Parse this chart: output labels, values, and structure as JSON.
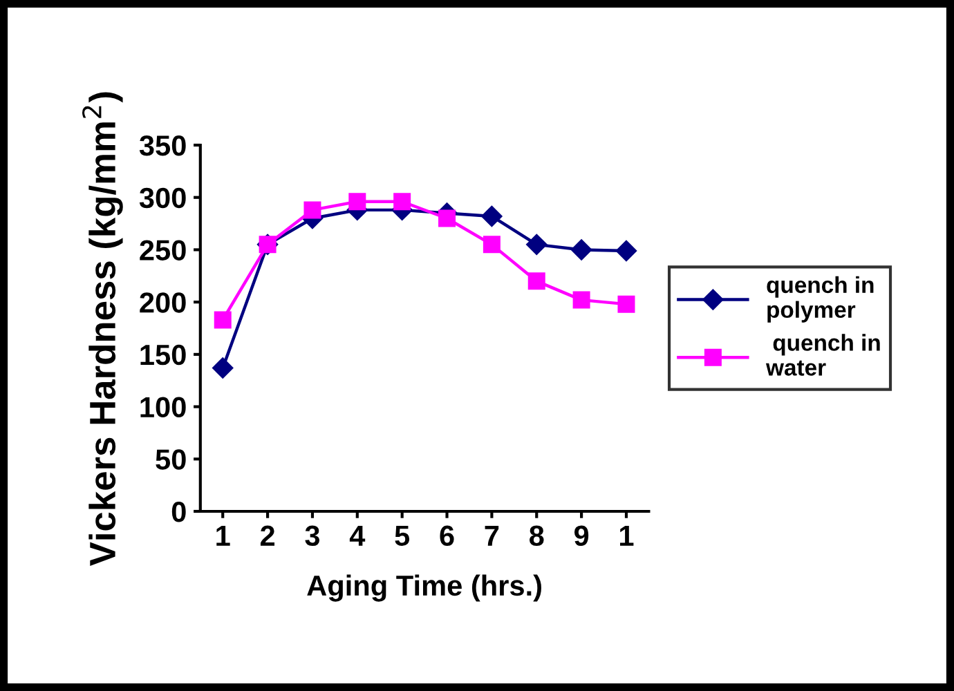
{
  "chart_data": {
    "type": "line",
    "xlabel": "Aging Time (hrs.)",
    "ylabel": "Vickers Hardness (kg/mm$^{2}$)",
    "categories": [
      "1",
      "2",
      "3",
      "4",
      "5",
      "6",
      "7",
      "8",
      "9",
      "1"
    ],
    "series": [
      {
        "name": "quench in polymer",
        "color": "#000080",
        "marker": "diamond",
        "values": [
          137,
          255,
          280,
          288,
          288,
          285,
          282,
          255,
          250,
          249
        ]
      },
      {
        "name": " quench in water",
        "color": "#ff00ff",
        "marker": "square",
        "values": [
          183,
          255,
          288,
          296,
          296,
          280,
          255,
          220,
          202,
          198
        ]
      }
    ],
    "ylim": [
      0,
      350
    ],
    "yticks": [
      0,
      50,
      100,
      150,
      200,
      250,
      300,
      350
    ],
    "grid": false,
    "legend": "right",
    "line_style": "solid"
  }
}
